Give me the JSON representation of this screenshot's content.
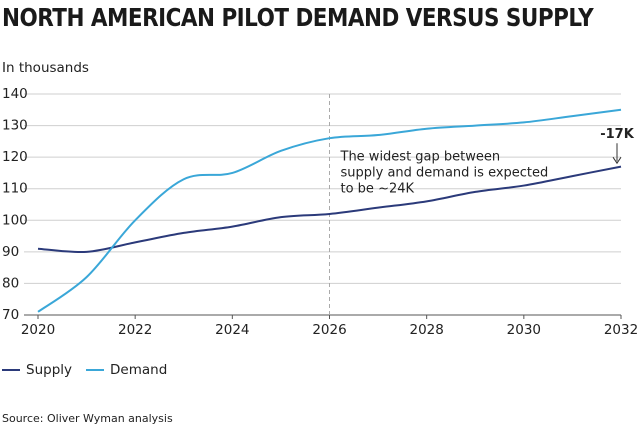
{
  "chart_data": {
    "type": "line",
    "title": "NORTH AMERICAN PILOT DEMAND VERSUS SUPPLY",
    "unit_label": "In thousands",
    "xlabel": "",
    "ylabel": "",
    "xlim": [
      2020,
      2032
    ],
    "ylim": [
      70,
      140
    ],
    "x_ticks": [
      "2020",
      "2022",
      "2024",
      "2026",
      "2028",
      "2030",
      "2032"
    ],
    "y_ticks": [
      "70",
      "80",
      "90",
      "100",
      "110",
      "120",
      "130",
      "140"
    ],
    "grid": "horizontal",
    "legend_position": "bottom-left",
    "series": [
      {
        "name": "Supply",
        "color": "#2b3a7a",
        "points": [
          [
            2020,
            91
          ],
          [
            2021,
            90
          ],
          [
            2022,
            93
          ],
          [
            2023,
            96
          ],
          [
            2024,
            98
          ],
          [
            2025,
            101
          ],
          [
            2026,
            102
          ],
          [
            2027,
            104
          ],
          [
            2028,
            106
          ],
          [
            2029,
            109
          ],
          [
            2030,
            111
          ],
          [
            2031,
            114
          ],
          [
            2032,
            117
          ]
        ]
      },
      {
        "name": "Demand",
        "color": "#3aa7d8",
        "points": [
          [
            2020,
            71
          ],
          [
            2021,
            82
          ],
          [
            2022,
            100
          ],
          [
            2023,
            113
          ],
          [
            2024,
            115
          ],
          [
            2025,
            122
          ],
          [
            2026,
            126
          ],
          [
            2027,
            127
          ],
          [
            2028,
            129
          ],
          [
            2029,
            130
          ],
          [
            2030,
            131
          ],
          [
            2031,
            133
          ],
          [
            2032,
            135
          ]
        ]
      }
    ],
    "reference_line": {
      "x": 2026
    },
    "annotations": [
      {
        "lines": [
          "The widest gap between",
          "supply and demand is expected",
          "to be ~24K"
        ],
        "x": 2026,
        "y": 119
      },
      {
        "text": "-17K",
        "x": 2032,
        "y": 126
      }
    ]
  },
  "source": "Source: Oliver Wyman analysis"
}
